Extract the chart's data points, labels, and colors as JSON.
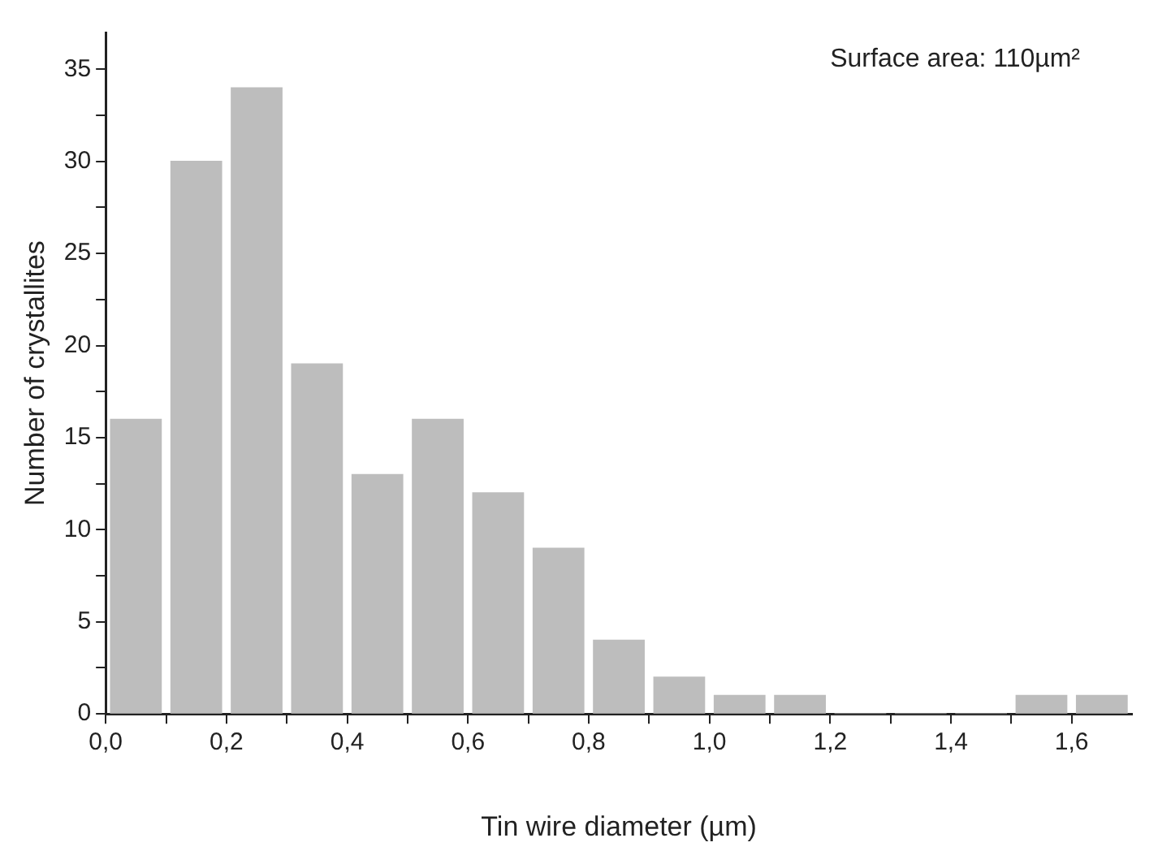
{
  "chart_data": {
    "type": "histogram",
    "xlabel": "Tin wire diameter (µm)",
    "ylabel": "Number of crystallites",
    "annotations": [
      "Surface area: 110µm²"
    ],
    "bins": [
      0,
      0.1,
      0.2,
      0.3,
      0.4,
      0.5,
      0.6,
      0.7,
      0.8,
      0.9,
      1.0,
      1.1,
      1.2,
      1.3,
      1.4,
      1.5,
      1.6,
      1.7
    ],
    "values": [
      16,
      30,
      34,
      19,
      13,
      16,
      12,
      9,
      4,
      2,
      1,
      1,
      0,
      0,
      0,
      1,
      1
    ],
    "color": "#bdbdbd",
    "xlim": [
      0,
      1.7
    ],
    "xticks": [
      {
        "value": 0,
        "label": "0,0"
      },
      {
        "value": 0.1,
        "label": null
      },
      {
        "value": 0.2,
        "label": "0,2"
      },
      {
        "value": 0.3,
        "label": null
      },
      {
        "value": 0.4,
        "label": "0,4"
      },
      {
        "value": 0.5,
        "label": null
      },
      {
        "value": 0.6,
        "label": "0,6"
      },
      {
        "value": 0.7,
        "label": null
      },
      {
        "value": 0.8,
        "label": "0,8"
      },
      {
        "value": 0.9,
        "label": null
      },
      {
        "value": 1.0,
        "label": "1,0"
      },
      {
        "value": 1.1,
        "label": null
      },
      {
        "value": 1.2,
        "label": "1,2"
      },
      {
        "value": 1.3,
        "label": null
      },
      {
        "value": 1.4,
        "label": "1,4"
      },
      {
        "value": 1.5,
        "label": null
      },
      {
        "value": 1.6,
        "label": "1,6"
      }
    ],
    "ylim": [
      0,
      37
    ],
    "yticks": [
      0,
      {
        "value": 2.5,
        "label": null
      },
      5,
      {
        "value": 7.5,
        "label": null
      },
      10,
      {
        "value": 12.5,
        "label": null
      },
      15,
      {
        "value": 17.5,
        "label": null
      },
      20,
      {
        "value": 22.5,
        "label": null
      },
      25,
      {
        "value": 27.5,
        "label": null
      },
      30,
      {
        "value": 32.5,
        "label": null
      },
      35
    ],
    "grid": false,
    "legend": false
  }
}
